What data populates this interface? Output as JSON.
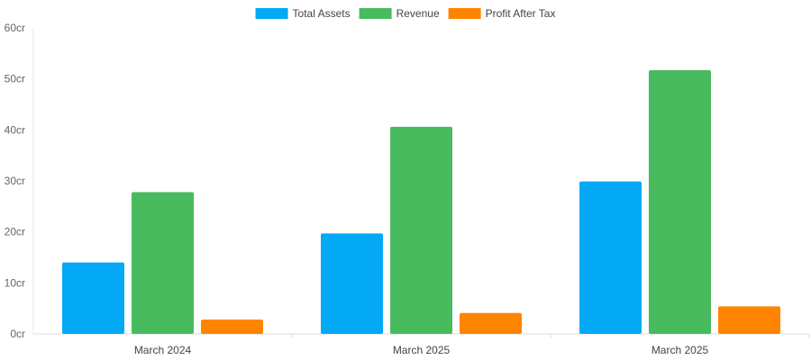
{
  "chart_data": {
    "type": "bar",
    "categories": [
      "March 2024",
      "March 2025",
      "March 2025"
    ],
    "series": [
      {
        "name": "Total Assets",
        "color": "#03A9F4",
        "values": [
          14,
          19.7,
          29.9
        ]
      },
      {
        "name": "Revenue",
        "color": "#47BB5D",
        "values": [
          27.8,
          40.6,
          51.7
        ]
      },
      {
        "name": "Profit After Tax",
        "color": "#FF8400",
        "values": [
          2.8,
          4.1,
          5.4
        ]
      }
    ],
    "yticks": [
      "0cr",
      "10cr",
      "20cr",
      "30cr",
      "40cr",
      "50cr",
      "60cr"
    ],
    "ylim": [
      0,
      60
    ],
    "legend_position": "top-center",
    "grid": false
  }
}
